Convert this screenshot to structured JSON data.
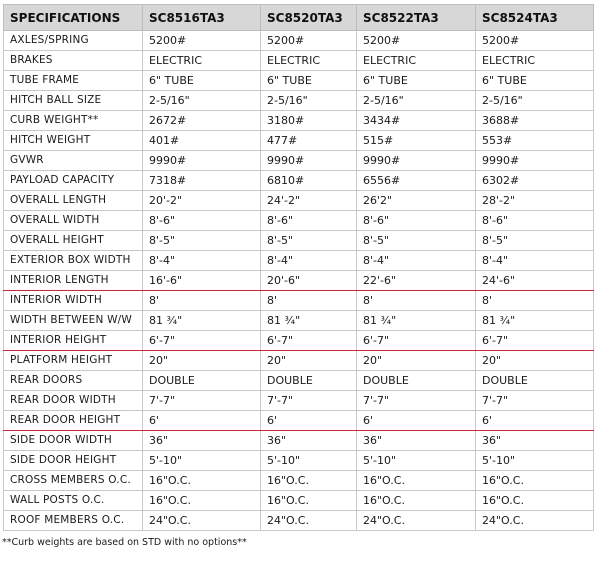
{
  "header": {
    "label": "SPECIFICATIONS",
    "models": [
      "SC8516TA3",
      "SC8520TA3",
      "SC8522TA3",
      "SC8524TA3"
    ]
  },
  "rows": [
    {
      "label": "AXLES/SPRING",
      "values": [
        "5200#",
        "5200#",
        "5200#",
        "5200#"
      ]
    },
    {
      "label": "BRAKES",
      "values": [
        "ELECTRIC",
        "ELECTRIC",
        "ELECTRIC",
        "ELECTRIC"
      ]
    },
    {
      "label": "TUBE FRAME",
      "values": [
        "6\" TUBE",
        "6\" TUBE",
        "6\" TUBE",
        "6\" TUBE"
      ]
    },
    {
      "label": "HITCH BALL SIZE",
      "values": [
        "2-5/16\"",
        "2-5/16\"",
        "2-5/16\"",
        "2-5/16\""
      ]
    },
    {
      "label": "CURB WEIGHT**",
      "values": [
        "2672#",
        "3180#",
        "3434#",
        "3688#"
      ]
    },
    {
      "label": "HITCH WEIGHT",
      "values": [
        "401#",
        "477#",
        "515#",
        "553#"
      ]
    },
    {
      "label": "GVWR",
      "values": [
        "9990#",
        "9990#",
        "9990#",
        "9990#"
      ]
    },
    {
      "label": "PAYLOAD CAPACITY",
      "values": [
        "7318#",
        "6810#",
        "6556#",
        "6302#"
      ]
    },
    {
      "label": "OVERALL LENGTH",
      "values": [
        "20'-2\"",
        "24'-2\"",
        "26'2\"",
        "28'-2\""
      ]
    },
    {
      "label": "OVERALL WIDTH",
      "values": [
        "8'-6\"",
        "8'-6\"",
        "8'-6\"",
        "8'-6\""
      ]
    },
    {
      "label": "OVERALL HEIGHT",
      "values": [
        "8'-5\"",
        "8'-5\"",
        "8'-5\"",
        "8'-5\""
      ]
    },
    {
      "label": "EXTERIOR BOX WIDTH",
      "values": [
        "8'-4\"",
        "8'-4\"",
        "8'-4\"",
        "8'-4\""
      ]
    },
    {
      "label": "INTERIOR LENGTH",
      "values": [
        "16'-6\"",
        "20'-6\"",
        "22'-6\"",
        "24'-6\""
      ],
      "red_bottom": true
    },
    {
      "label": "INTERIOR WIDTH",
      "values": [
        "8'",
        "8'",
        "8'",
        "8'"
      ]
    },
    {
      "label": "WIDTH BETWEEN W/W",
      "values": [
        "81 ¾\"",
        "81 ¾\"",
        "81 ¾\"",
        "81 ¾\""
      ]
    },
    {
      "label": "INTERIOR HEIGHT",
      "values": [
        "6'-7\"",
        "6'-7\"",
        "6'-7\"",
        "6'-7\""
      ],
      "red_bottom": true
    },
    {
      "label": "PLATFORM HEIGHT",
      "values": [
        "20\"",
        "20\"",
        "20\"",
        "20\""
      ]
    },
    {
      "label": "REAR DOORS",
      "values": [
        "DOUBLE",
        "DOUBLE",
        "DOUBLE",
        "DOUBLE"
      ]
    },
    {
      "label": "REAR DOOR WIDTH",
      "values": [
        "7'-7\"",
        "7'-7\"",
        "7'-7\"",
        "7'-7\""
      ]
    },
    {
      "label": "REAR DOOR HEIGHT",
      "values": [
        "6'",
        "6'",
        "6'",
        "6'"
      ],
      "red_bottom": true
    },
    {
      "label": "SIDE DOOR WIDTH",
      "values": [
        "36\"",
        "36\"",
        "36\"",
        "36\""
      ]
    },
    {
      "label": "SIDE DOOR HEIGHT",
      "values": [
        "5'-10\"",
        "5'-10\"",
        "5'-10\"",
        "5'-10\""
      ]
    },
    {
      "label": "CROSS MEMBERS O.C.",
      "values": [
        "16\"O.C.",
        "16\"O.C.",
        "16\"O.C.",
        "16\"O.C."
      ]
    },
    {
      "label": "WALL POSTS O.C.",
      "values": [
        "16\"O.C.",
        "16\"O.C.",
        "16\"O.C.",
        "16\"O.C."
      ]
    },
    {
      "label": "ROOF MEMBERS O.C.",
      "values": [
        "24\"O.C.",
        "24\"O.C.",
        "24\"O.C.",
        "24\"O.C."
      ]
    }
  ],
  "footnote": "**Curb weights are based on STD with no options**",
  "colors": {
    "header_bg": "#d7d7d7",
    "grid_line": "#c9c9c9",
    "accent_red_line": "#c7283b",
    "text": "#1a1a1a"
  }
}
